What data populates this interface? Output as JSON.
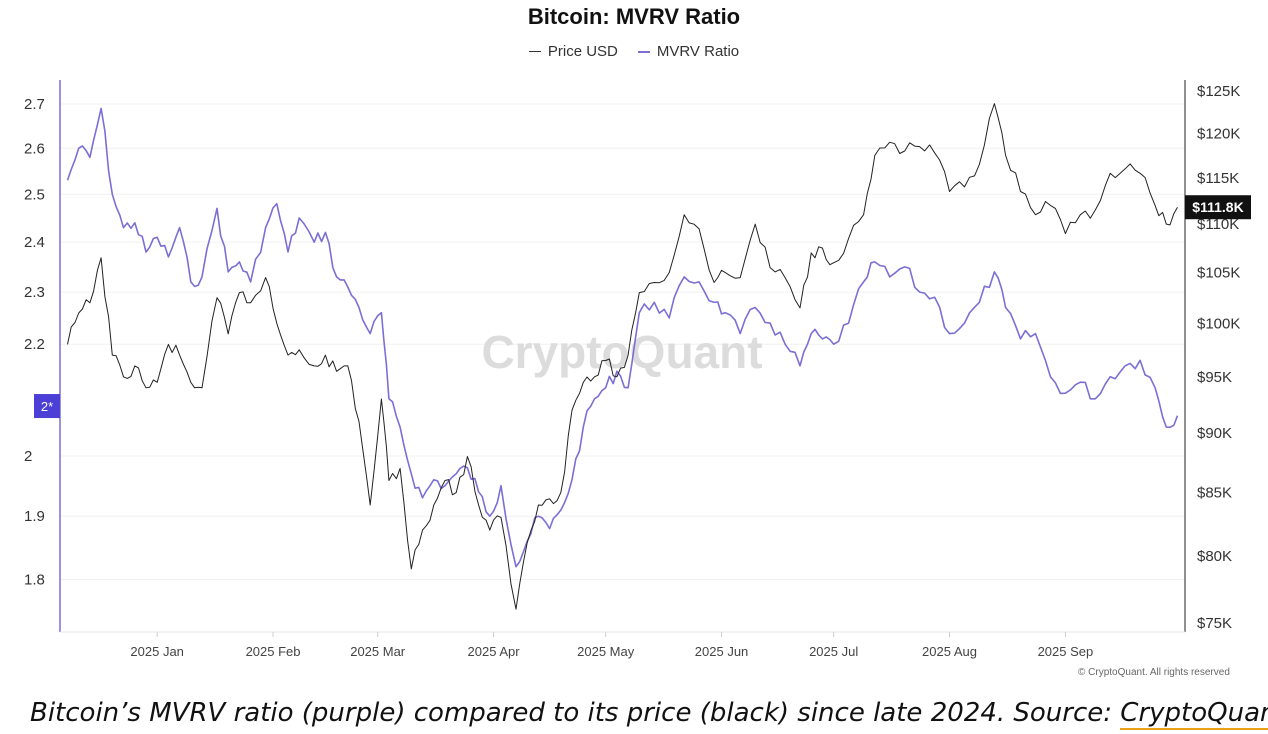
{
  "chart_data": {
    "type": "line",
    "title": "Bitcoin: MVRV Ratio",
    "legend": [
      "Price USD",
      "MVRV Ratio"
    ],
    "legend_placement": "top-center",
    "grid": true,
    "watermark": "CryptoQuant",
    "copyright": "© CryptoQuant. All rights reserved",
    "x_ticks": [
      "2025 Jan",
      "2025 Feb",
      "2025 Mar",
      "2025 Apr",
      "2025 May",
      "2025 Jun",
      "2025 Jul",
      "2025 Aug",
      "2025 Sep"
    ],
    "y_left": {
      "ticks": [
        "2.7",
        "2.6",
        "2.5",
        "2.4",
        "2.3",
        "2.2",
        "2",
        "1.9",
        "1.8"
      ],
      "ylim": [
        1.76,
        2.7
      ],
      "current_marker": "2*"
    },
    "y_right": {
      "ticks": [
        "$125K",
        "$120K",
        "$115K",
        "$110K",
        "$105K",
        "$100K",
        "$95K",
        "$90K",
        "$85K",
        "$80K",
        "$75K"
      ],
      "ylim": [
        75000,
        125000
      ],
      "current_price_label": "$111.8K"
    },
    "series": [
      {
        "name": "MVRV Ratio",
        "color": "#7b6fd6",
        "points": [
          [
            "2024-12-08",
            2.53
          ],
          [
            "2024-12-11",
            2.6
          ],
          [
            "2024-12-14",
            2.58
          ],
          [
            "2024-12-17",
            2.69
          ],
          [
            "2024-12-20",
            2.5
          ],
          [
            "2024-12-23",
            2.43
          ],
          [
            "2024-12-26",
            2.44
          ],
          [
            "2024-12-29",
            2.38
          ],
          [
            "2025-01-01",
            2.41
          ],
          [
            "2025-01-04",
            2.37
          ],
          [
            "2025-01-07",
            2.43
          ],
          [
            "2025-01-10",
            2.32
          ],
          [
            "2025-01-13",
            2.33
          ],
          [
            "2025-01-17",
            2.47
          ],
          [
            "2025-01-20",
            2.34
          ],
          [
            "2025-01-23",
            2.36
          ],
          [
            "2025-01-26",
            2.32
          ],
          [
            "2025-01-30",
            2.43
          ],
          [
            "2025-02-02",
            2.48
          ],
          [
            "2025-02-05",
            2.38
          ],
          [
            "2025-02-08",
            2.45
          ],
          [
            "2025-02-12",
            2.4
          ],
          [
            "2025-02-15",
            2.42
          ],
          [
            "2025-02-18",
            2.33
          ],
          [
            "2025-02-21",
            2.31
          ],
          [
            "2025-02-24",
            2.27
          ],
          [
            "2025-02-27",
            2.22
          ],
          [
            "2025-03-02",
            2.26
          ],
          [
            "2025-03-04",
            2.1
          ],
          [
            "2025-03-07",
            2.05
          ],
          [
            "2025-03-10",
            1.97
          ],
          [
            "2025-03-13",
            1.93
          ],
          [
            "2025-03-16",
            1.96
          ],
          [
            "2025-03-19",
            1.95
          ],
          [
            "2025-03-22",
            1.97
          ],
          [
            "2025-03-25",
            1.98
          ],
          [
            "2025-03-28",
            1.94
          ],
          [
            "2025-03-31",
            1.9
          ],
          [
            "2025-04-03",
            1.95
          ],
          [
            "2025-04-07",
            1.82
          ],
          [
            "2025-04-10",
            1.86
          ],
          [
            "2025-04-13",
            1.9
          ],
          [
            "2025-04-16",
            1.88
          ],
          [
            "2025-04-19",
            1.91
          ],
          [
            "2025-04-22",
            1.96
          ],
          [
            "2025-04-25",
            2.05
          ],
          [
            "2025-04-28",
            2.1
          ],
          [
            "2025-05-01",
            2.12
          ],
          [
            "2025-05-04",
            2.15
          ],
          [
            "2025-05-07",
            2.12
          ],
          [
            "2025-05-10",
            2.26
          ],
          [
            "2025-05-14",
            2.28
          ],
          [
            "2025-05-18",
            2.25
          ],
          [
            "2025-05-22",
            2.33
          ],
          [
            "2025-05-26",
            2.32
          ],
          [
            "2025-05-30",
            2.28
          ],
          [
            "2025-06-02",
            2.26
          ],
          [
            "2025-06-06",
            2.22
          ],
          [
            "2025-06-10",
            2.27
          ],
          [
            "2025-06-14",
            2.24
          ],
          [
            "2025-06-18",
            2.2
          ],
          [
            "2025-06-22",
            2.16
          ],
          [
            "2025-06-25",
            2.22
          ],
          [
            "2025-06-28",
            2.21
          ],
          [
            "2025-07-01",
            2.2
          ],
          [
            "2025-07-05",
            2.24
          ],
          [
            "2025-07-09",
            2.32
          ],
          [
            "2025-07-12",
            2.36
          ],
          [
            "2025-07-16",
            2.33
          ],
          [
            "2025-07-20",
            2.35
          ],
          [
            "2025-07-24",
            2.3
          ],
          [
            "2025-07-28",
            2.29
          ],
          [
            "2025-08-01",
            2.22
          ],
          [
            "2025-08-05",
            2.24
          ],
          [
            "2025-08-09",
            2.28
          ],
          [
            "2025-08-13",
            2.34
          ],
          [
            "2025-08-16",
            2.27
          ],
          [
            "2025-08-20",
            2.21
          ],
          [
            "2025-08-24",
            2.22
          ],
          [
            "2025-08-28",
            2.14
          ],
          [
            "2025-09-01",
            2.11
          ],
          [
            "2025-09-05",
            2.13
          ],
          [
            "2025-09-09",
            2.1
          ],
          [
            "2025-09-13",
            2.14
          ],
          [
            "2025-09-17",
            2.16
          ],
          [
            "2025-09-21",
            2.17
          ],
          [
            "2025-09-25",
            2.12
          ],
          [
            "2025-09-28",
            2.05
          ],
          [
            "2025-10-01",
            2.07
          ]
        ]
      },
      {
        "name": "Price USD",
        "color": "#222222",
        "points": [
          [
            "2024-12-08",
            98000
          ],
          [
            "2024-12-11",
            101000
          ],
          [
            "2024-12-14",
            102000
          ],
          [
            "2024-12-17",
            106500
          ],
          [
            "2024-12-20",
            97000
          ],
          [
            "2024-12-23",
            95000
          ],
          [
            "2024-12-26",
            96000
          ],
          [
            "2024-12-29",
            94000
          ],
          [
            "2025-01-01",
            94500
          ],
          [
            "2025-01-04",
            98000
          ],
          [
            "2025-01-07",
            97000
          ],
          [
            "2025-01-10",
            94500
          ],
          [
            "2025-01-13",
            94000
          ],
          [
            "2025-01-17",
            102500
          ],
          [
            "2025-01-20",
            99000
          ],
          [
            "2025-01-23",
            103000
          ],
          [
            "2025-01-26",
            102000
          ],
          [
            "2025-01-30",
            104500
          ],
          [
            "2025-02-02",
            100000
          ],
          [
            "2025-02-05",
            97000
          ],
          [
            "2025-02-08",
            97500
          ],
          [
            "2025-02-12",
            96000
          ],
          [
            "2025-02-15",
            97000
          ],
          [
            "2025-02-18",
            95500
          ],
          [
            "2025-02-21",
            96000
          ],
          [
            "2025-02-24",
            91000
          ],
          [
            "2025-02-27",
            84000
          ],
          [
            "2025-03-02",
            93000
          ],
          [
            "2025-03-04",
            86000
          ],
          [
            "2025-03-07",
            87000
          ],
          [
            "2025-03-10",
            79000
          ],
          [
            "2025-03-13",
            82000
          ],
          [
            "2025-03-16",
            84000
          ],
          [
            "2025-03-19",
            86000
          ],
          [
            "2025-03-22",
            85000
          ],
          [
            "2025-03-25",
            88000
          ],
          [
            "2025-03-28",
            84000
          ],
          [
            "2025-03-31",
            82000
          ],
          [
            "2025-04-03",
            83000
          ],
          [
            "2025-04-07",
            76000
          ],
          [
            "2025-04-10",
            81000
          ],
          [
            "2025-04-13",
            84000
          ],
          [
            "2025-04-16",
            84500
          ],
          [
            "2025-04-19",
            85000
          ],
          [
            "2025-04-22",
            92000
          ],
          [
            "2025-04-25",
            94500
          ],
          [
            "2025-04-28",
            95000
          ],
          [
            "2025-05-01",
            96500
          ],
          [
            "2025-05-04",
            95000
          ],
          [
            "2025-05-07",
            97000
          ],
          [
            "2025-05-10",
            103000
          ],
          [
            "2025-05-14",
            104000
          ],
          [
            "2025-05-18",
            105000
          ],
          [
            "2025-05-22",
            111000
          ],
          [
            "2025-05-26",
            109500
          ],
          [
            "2025-05-30",
            104000
          ],
          [
            "2025-06-02",
            105000
          ],
          [
            "2025-06-06",
            104500
          ],
          [
            "2025-06-10",
            110000
          ],
          [
            "2025-06-14",
            105500
          ],
          [
            "2025-06-18",
            104500
          ],
          [
            "2025-06-22",
            101500
          ],
          [
            "2025-06-25",
            107000
          ],
          [
            "2025-06-28",
            107500
          ],
          [
            "2025-07-01",
            106000
          ],
          [
            "2025-07-05",
            108500
          ],
          [
            "2025-07-09",
            111000
          ],
          [
            "2025-07-12",
            117500
          ],
          [
            "2025-07-16",
            119000
          ],
          [
            "2025-07-20",
            118000
          ],
          [
            "2025-07-24",
            118500
          ],
          [
            "2025-07-28",
            117800
          ],
          [
            "2025-08-01",
            113500
          ],
          [
            "2025-08-05",
            114000
          ],
          [
            "2025-08-09",
            116500
          ],
          [
            "2025-08-13",
            123500
          ],
          [
            "2025-08-16",
            117500
          ],
          [
            "2025-08-20",
            113500
          ],
          [
            "2025-08-24",
            111000
          ],
          [
            "2025-08-28",
            112000
          ],
          [
            "2025-09-01",
            109000
          ],
          [
            "2025-09-05",
            111000
          ],
          [
            "2025-09-09",
            111500
          ],
          [
            "2025-09-13",
            115500
          ],
          [
            "2025-09-17",
            116000
          ],
          [
            "2025-09-21",
            115500
          ],
          [
            "2025-09-25",
            112000
          ],
          [
            "2025-09-28",
            110000
          ],
          [
            "2025-10-01",
            111800
          ]
        ]
      }
    ]
  },
  "caption": {
    "text": "Bitcoin’s MVRV ratio (purple) compared to its price (black) since late 2024. Source: ",
    "link": "CryptoQuant"
  }
}
